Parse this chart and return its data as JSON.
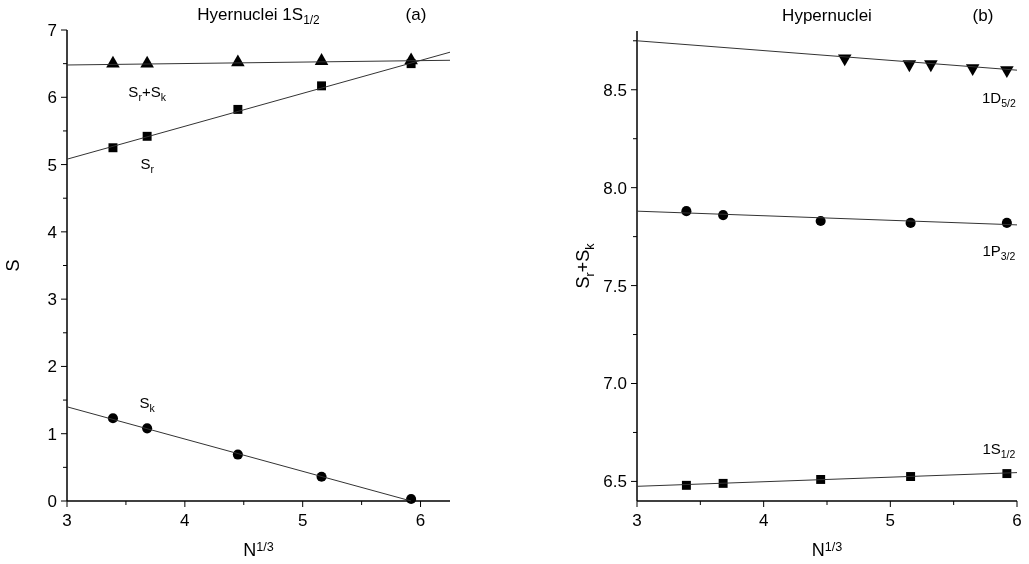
{
  "chart_data": [
    {
      "type": "scatter",
      "title": "Hyernuclei 1S$_{1/2}$",
      "xlabel": "N$^{1/3}$",
      "ylabel": "S",
      "xlim": [
        3,
        6.25
      ],
      "ylim": [
        0,
        7
      ],
      "xticks": [
        3,
        {
          "value": 3.5,
          "label": null
        },
        4,
        {
          "value": 4.5,
          "label": null
        },
        5,
        {
          "value": 5.5,
          "label": null
        },
        6
      ],
      "yticks": [
        0,
        {
          "value": 0.5,
          "label": null
        },
        1,
        {
          "value": 1.5,
          "label": null
        },
        2,
        {
          "value": 2.5,
          "label": null
        },
        3,
        {
          "value": 3.5,
          "label": null
        },
        4,
        {
          "value": 4.5,
          "label": null
        },
        5,
        {
          "value": 5.5,
          "label": null
        },
        6,
        {
          "value": 6.5,
          "label": null
        },
        7
      ],
      "annotations": [
        "(a)"
      ],
      "series": [
        {
          "type": "scatter",
          "name": "S$_{r}$+S$_{k}$",
          "marker": "triangle",
          "color": "#000000",
          "x": [
            3.39,
            3.68,
            4.45,
            5.16,
            5.92
          ],
          "values": [
            6.5,
            6.5,
            6.52,
            6.54,
            6.55
          ]
        },
        {
          "type": "scatter",
          "name": "S$_{r}$",
          "marker": "square",
          "color": "#000000",
          "x": [
            3.39,
            3.68,
            4.45,
            5.16,
            5.92
          ],
          "values": [
            5.25,
            5.42,
            5.82,
            6.17,
            6.5
          ]
        },
        {
          "type": "scatter",
          "name": "S$_{k}$",
          "marker": "circle",
          "color": "#000000",
          "x": [
            3.39,
            3.68,
            4.45,
            5.16,
            5.92
          ],
          "values": [
            1.23,
            1.08,
            0.69,
            0.36,
            0.03
          ]
        },
        {
          "type": "line",
          "marker": "none",
          "color": "#333333",
          "x": [
            3,
            6.25
          ],
          "values": [
            6.48,
            6.55
          ]
        },
        {
          "type": "line",
          "marker": "none",
          "color": "#333333",
          "x": [
            3,
            6.25
          ],
          "values": [
            5.08,
            6.67
          ]
        },
        {
          "type": "line",
          "marker": "none",
          "color": "#333333",
          "x": [
            3,
            5.92
          ],
          "values": [
            1.4,
            0
          ]
        }
      ]
    },
    {
      "type": "scatter",
      "title": "Hypernuclei",
      "xlabel": "N$^{1/3}$",
      "ylabel": "S$_{r}$+S$_{k}$",
      "xlim": [
        3,
        6
      ],
      "ylim": [
        6.4,
        8.8
      ],
      "xticks": [
        3,
        {
          "value": 3.5,
          "label": null
        },
        4,
        {
          "value": 4.5,
          "label": null
        },
        5,
        {
          "value": 5.5,
          "label": null
        },
        6
      ],
      "yticks": [
        6.5,
        {
          "value": 6.75,
          "label": null
        },
        {
          "value": 7,
          "label": "7.0"
        },
        {
          "value": 7.25,
          "label": null
        },
        7.5,
        {
          "value": 7.75,
          "label": null
        },
        {
          "value": 8,
          "label": "8.0"
        },
        {
          "value": 8.25,
          "label": null
        },
        8.5,
        {
          "value": 8.75,
          "label": null
        }
      ],
      "annotations": [
        "(b)"
      ],
      "series": [
        {
          "type": "scatter",
          "name": "1D$_{5/2}$",
          "marker": "triangle-down",
          "color": "#000000",
          "x": [
            4.64,
            5.15,
            5.32,
            5.65,
            5.92
          ],
          "values": [
            8.66,
            8.63,
            8.63,
            8.61,
            8.6
          ]
        },
        {
          "type": "scatter",
          "name": "1P$_{3/2}$",
          "marker": "circle",
          "color": "#000000",
          "x": [
            3.39,
            3.68,
            4.45,
            5.16,
            5.92
          ],
          "values": [
            7.88,
            7.86,
            7.83,
            7.82,
            7.82
          ]
        },
        {
          "type": "scatter",
          "name": "1S$_{1/2}$",
          "marker": "square",
          "color": "#000000",
          "x": [
            3.39,
            3.68,
            4.45,
            5.16,
            5.92
          ],
          "values": [
            6.48,
            6.49,
            6.51,
            6.525,
            6.54
          ]
        },
        {
          "type": "line",
          "marker": "none",
          "color": "#333333",
          "x": [
            3,
            6
          ],
          "values": [
            8.75,
            8.6
          ]
        },
        {
          "type": "line",
          "marker": "none",
          "color": "#333333",
          "x": [
            3,
            6
          ],
          "values": [
            7.88,
            7.81
          ]
        },
        {
          "type": "line",
          "marker": "none",
          "color": "#333333",
          "x": [
            3,
            6
          ],
          "values": [
            6.475,
            6.545
          ]
        }
      ]
    }
  ]
}
